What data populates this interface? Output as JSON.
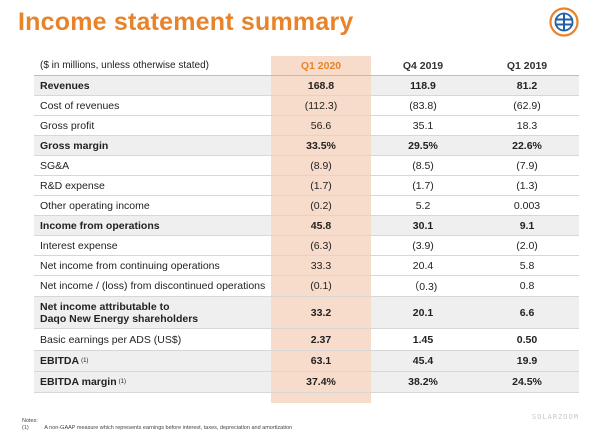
{
  "page": {
    "title": "Income statement summary",
    "logo_icon": "sun-globe-logo-icon",
    "accent_color": "#e8832a",
    "highlight_color": "#f8dccb",
    "row_shade_color": "#efefef"
  },
  "table": {
    "header": {
      "label": "($ in millions, unless otherwise  stated)",
      "col1": "Q1 2020",
      "col2": "Q4 2019",
      "col3": "Q1 2019"
    },
    "rows": [
      {
        "label": "Revenues",
        "q1_2020": "168.8",
        "q4_2019": "118.9",
        "q1_2019": "81.2"
      },
      {
        "label": "Cost of revenues",
        "q1_2020": "(112.3)",
        "q4_2019": "(83.8)",
        "q1_2019": "(62.9)"
      },
      {
        "label": "Gross profit",
        "q1_2020": "56.6",
        "q4_2019": "35.1",
        "q1_2019": "18.3"
      },
      {
        "label": "Gross margin",
        "q1_2020": "33.5%",
        "q4_2019": "29.5%",
        "q1_2019": "22.6%"
      },
      {
        "label": "SG&A",
        "q1_2020": "(8.9)",
        "q4_2019": "(8.5)",
        "q1_2019": "(7.9)"
      },
      {
        "label": "R&D expense",
        "q1_2020": "(1.7)",
        "q4_2019": "(1.7)",
        "q1_2019": "(1.3)"
      },
      {
        "label": "Other operating income",
        "q1_2020": "(0.2)",
        "q4_2019": "5.2",
        "q1_2019": "0.003"
      },
      {
        "label": "Income from operations",
        "q1_2020": "45.8",
        "q4_2019": "30.1",
        "q1_2019": "9.1"
      },
      {
        "label": "Interest expense",
        "q1_2020": "(6.3)",
        "q4_2019": "(3.9)",
        "q1_2019": "(2.0)"
      },
      {
        "label": "Net income from continuing operations",
        "q1_2020": "33.3",
        "q4_2019": "20.4",
        "q1_2019": "5.8"
      },
      {
        "label": "Net income / (loss) from discontinued operations",
        "q1_2020": "(0.1)",
        "q4_2019": "（0.3)",
        "q1_2019": "0.8"
      },
      {
        "label_line1": "Net income attributable to",
        "label_line2": "Daqo New Energy shareholders",
        "q1_2020": "33.2",
        "q4_2019": "20.1",
        "q1_2019": "6.6"
      },
      {
        "label": "Basic earnings per ADS (US$)",
        "q1_2020": "2.37",
        "q4_2019": "1.45",
        "q1_2019": "0.50"
      },
      {
        "label": "EBITDA",
        "sup": "(1)",
        "q1_2020": "63.1",
        "q4_2019": "45.4",
        "q1_2019": "19.9"
      },
      {
        "label": "EBITDA margin",
        "sup": "(1)",
        "q1_2020": "37.4%",
        "q4_2019": "38.2%",
        "q1_2019": "24.5%"
      }
    ]
  },
  "notes": {
    "heading": "Notes:",
    "marker": "(1)",
    "text": "A non-GAAP measure which represents earnings before interest, taxes, depreciation and amortization"
  },
  "watermark": "SOLARZOOM"
}
